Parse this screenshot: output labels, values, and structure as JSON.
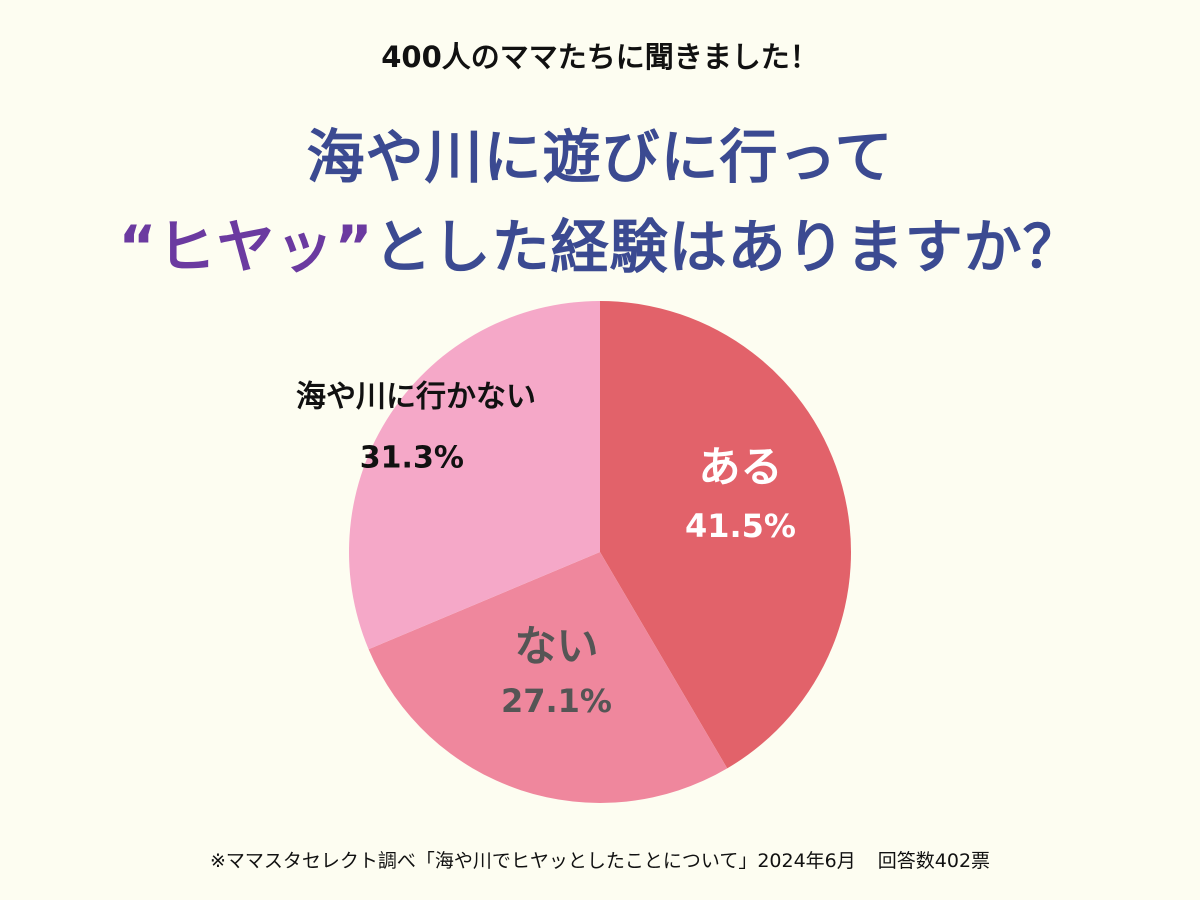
{
  "header": {
    "subtitle": "400人のママたちに聞きました！",
    "title_line1": "海や川に遊びに行って",
    "title_line2_accent": "“ヒヤッ”",
    "title_line2_rest": "とした経験はありますか？"
  },
  "chart_data": {
    "type": "pie",
    "title": "海や川に遊びに行って“ヒヤッ”とした経験はありますか？",
    "start": "top",
    "direction": "clockwise",
    "slices": [
      {
        "label": "ある",
        "value": 41.5,
        "value_text": "41.5%",
        "color": "#e2626a",
        "text_color": "#ffffff"
      },
      {
        "label": "ない",
        "value": 27.1,
        "value_text": "27.1%",
        "color": "#ef879d",
        "text_color": "#555555"
      },
      {
        "label": "海や川に行かない",
        "value": 31.3,
        "value_text": "31.3%",
        "color": "#f5a8c8",
        "text_color": "#111111"
      }
    ]
  },
  "footer": {
    "source": "※ママスタセレクト調べ「海や川でヒヤッとしたことについて」2024年6月",
    "responses": "回答数402票"
  }
}
